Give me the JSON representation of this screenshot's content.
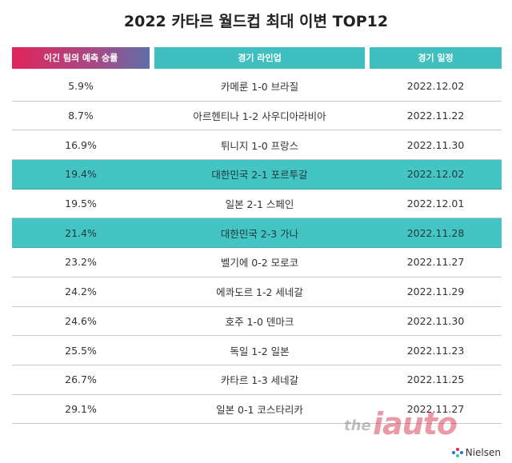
{
  "title": "2022 카타르 월드컵 최대 이변 TOP12",
  "header": {
    "col1": "이긴 팀의 예측 승률",
    "col2": "경기 라인업",
    "col3": "경기 일정"
  },
  "rows": [
    {
      "prob": "5.9%",
      "match": "카메룬 1-0 브라질",
      "date": "2022.12.02",
      "highlight": false
    },
    {
      "prob": "8.7%",
      "match": "아르헨티나 1-2 사우디아라비아",
      "date": "2022.11.22",
      "highlight": false
    },
    {
      "prob": "16.9%",
      "match": "튀니지 1-0 프랑스",
      "date": "2022.11.30",
      "highlight": false
    },
    {
      "prob": "19.4%",
      "match": "대한민국 2-1 포르투갈",
      "date": "2022.12.02",
      "highlight": true
    },
    {
      "prob": "19.5%",
      "match": "일본 2-1 스페인",
      "date": "2022.12.01",
      "highlight": false
    },
    {
      "prob": "21.4%",
      "match": "대한민국 2-3 가나",
      "date": "2022.11.28",
      "highlight": true
    },
    {
      "prob": "23.2%",
      "match": "벨기에 0-2 모로코",
      "date": "2022.11.27",
      "highlight": false
    },
    {
      "prob": "24.2%",
      "match": "에콰도르 1-2 세네갈",
      "date": "2022.11.29",
      "highlight": false
    },
    {
      "prob": "24.6%",
      "match": "호주 1-0 덴마크",
      "date": "2022.11.30",
      "highlight": false
    },
    {
      "prob": "25.5%",
      "match": "독일 1-2 일본",
      "date": "2022.11.23",
      "highlight": false
    },
    {
      "prob": "26.7%",
      "match": "카타르 1-3 세네갈",
      "date": "2022.11.25",
      "highlight": false
    },
    {
      "prob": "29.1%",
      "match": "일본 0-1 코스타리카",
      "date": "2022.11.27",
      "highlight": false
    }
  ],
  "watermark": {
    "prefix": "the",
    "brand": "iauto"
  },
  "source": "Nielsen",
  "colors": {
    "accent_teal": "#3fbfbf",
    "highlight_row": "#45c4c4",
    "header_pink": "#e0245a"
  }
}
